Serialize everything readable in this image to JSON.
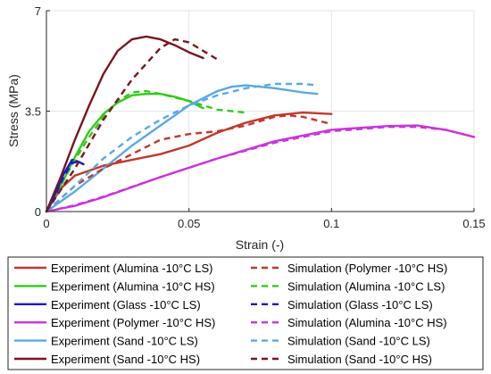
{
  "chart_data": {
    "type": "line",
    "xlabel": "Strain (-)",
    "ylabel": "Stress (MPa)",
    "xlim": [
      0,
      0.15
    ],
    "ylim": [
      0,
      7
    ],
    "xticks": [
      0,
      0.05,
      0.1,
      0.15
    ],
    "yticks": [
      0,
      3.5,
      7
    ],
    "xtick_labels": [
      "0",
      "0.05",
      "0.1",
      "0.15"
    ],
    "ytick_labels": [
      "0",
      "3.5",
      "7"
    ],
    "grid": true,
    "legend_placement": "bottom",
    "series": [
      {
        "name": "Experiment (Alumina -10°C LS)",
        "color": "#c0392b",
        "style": "solid",
        "x": [
          0,
          0.005,
          0.01,
          0.02,
          0.03,
          0.04,
          0.05,
          0.06,
          0.07,
          0.08,
          0.09,
          0.1
        ],
        "y": [
          0,
          0.8,
          1.25,
          1.6,
          1.8,
          2.0,
          2.3,
          2.75,
          3.1,
          3.35,
          3.45,
          3.4
        ]
      },
      {
        "name": "Experiment (Alumina -10°C HS)",
        "color": "#2ecc1a",
        "style": "solid",
        "x": [
          0,
          0.005,
          0.01,
          0.015,
          0.02,
          0.025,
          0.03,
          0.035,
          0.04,
          0.045,
          0.05,
          0.055
        ],
        "y": [
          0,
          0.9,
          1.9,
          2.8,
          3.4,
          3.8,
          4.05,
          4.1,
          4.1,
          4.0,
          3.85,
          3.6
        ]
      },
      {
        "name": "Experiment (Glass -10°C LS)",
        "color": "#1a1acc",
        "style": "solid",
        "x": [
          0,
          0.003,
          0.006,
          0.009,
          0.011,
          0.013
        ],
        "y": [
          0,
          0.6,
          1.3,
          1.8,
          1.75,
          1.65
        ]
      },
      {
        "name": "Experiment (Polymer -10°C HS)",
        "color": "#cc33dd",
        "style": "solid",
        "x": [
          0,
          0.01,
          0.02,
          0.04,
          0.06,
          0.08,
          0.1,
          0.12,
          0.13,
          0.14,
          0.15
        ],
        "y": [
          0,
          0.2,
          0.5,
          1.2,
          1.85,
          2.45,
          2.85,
          2.98,
          3.0,
          2.85,
          2.6
        ]
      },
      {
        "name": "Experiment (Sand -10°C LS)",
        "color": "#5aa9e6",
        "style": "solid",
        "x": [
          0,
          0.01,
          0.02,
          0.03,
          0.04,
          0.05,
          0.06,
          0.065,
          0.07,
          0.08,
          0.09,
          0.095
        ],
        "y": [
          0,
          0.7,
          1.5,
          2.3,
          3.0,
          3.7,
          4.2,
          4.35,
          4.4,
          4.3,
          4.15,
          4.1
        ]
      },
      {
        "name": "Experiment (Sand -10°C HS)",
        "color": "#7a1520",
        "style": "solid",
        "x": [
          0,
          0.005,
          0.01,
          0.015,
          0.02,
          0.025,
          0.03,
          0.035,
          0.04,
          0.045,
          0.05,
          0.055
        ],
        "y": [
          0,
          1.2,
          2.5,
          3.7,
          4.8,
          5.6,
          6.0,
          6.1,
          6.0,
          5.8,
          5.55,
          5.35
        ]
      },
      {
        "name": "Simulation (Polymer -10°C HS)",
        "color": "#c0392b",
        "style": "dashed",
        "x": [
          0,
          0.01,
          0.02,
          0.03,
          0.04,
          0.05,
          0.06,
          0.07,
          0.08,
          0.085,
          0.09,
          0.1
        ],
        "y": [
          0,
          0.9,
          1.5,
          2.0,
          2.5,
          2.7,
          2.8,
          3.0,
          3.3,
          3.35,
          3.3,
          3.05
        ]
      },
      {
        "name": "Simulation (Alumina -10°C LS)",
        "color": "#2ecc1a",
        "style": "dashed",
        "x": [
          0,
          0.005,
          0.01,
          0.015,
          0.02,
          0.025,
          0.03,
          0.035,
          0.04,
          0.05,
          0.06,
          0.07
        ],
        "y": [
          0,
          0.9,
          1.8,
          2.6,
          3.3,
          3.85,
          4.15,
          4.2,
          4.1,
          3.85,
          3.55,
          3.45
        ]
      },
      {
        "name": "Simulation (Glass -10°C LS)",
        "color": "#1a1acc",
        "style": "dashed",
        "x": [
          0,
          0.003,
          0.006,
          0.009,
          0.012
        ],
        "y": [
          0,
          0.55,
          1.2,
          1.7,
          1.75
        ]
      },
      {
        "name": "Simulation (Alumina -10°C HS)",
        "color": "#cc33dd",
        "style": "dashed",
        "x": [
          0,
          0.01,
          0.02,
          0.04,
          0.06,
          0.08,
          0.1,
          0.12,
          0.13,
          0.14,
          0.15
        ],
        "y": [
          0,
          0.22,
          0.52,
          1.2,
          1.85,
          2.4,
          2.8,
          2.95,
          2.95,
          2.85,
          2.6
        ]
      },
      {
        "name": "Simulation (Sand -10°C LS)",
        "color": "#5aa9e6",
        "style": "dashed",
        "x": [
          0,
          0.01,
          0.02,
          0.03,
          0.04,
          0.05,
          0.06,
          0.07,
          0.08,
          0.09,
          0.095
        ],
        "y": [
          0,
          0.9,
          1.85,
          2.6,
          3.2,
          3.7,
          4.05,
          4.3,
          4.45,
          4.45,
          4.4
        ]
      },
      {
        "name": "Simulation (Sand -10°C HS)",
        "color": "#7a1520",
        "style": "dashed",
        "x": [
          0,
          0.01,
          0.02,
          0.03,
          0.04,
          0.045,
          0.05,
          0.055,
          0.06
        ],
        "y": [
          0,
          1.5,
          3.2,
          4.6,
          5.7,
          6.0,
          5.9,
          5.6,
          5.3
        ]
      }
    ]
  }
}
